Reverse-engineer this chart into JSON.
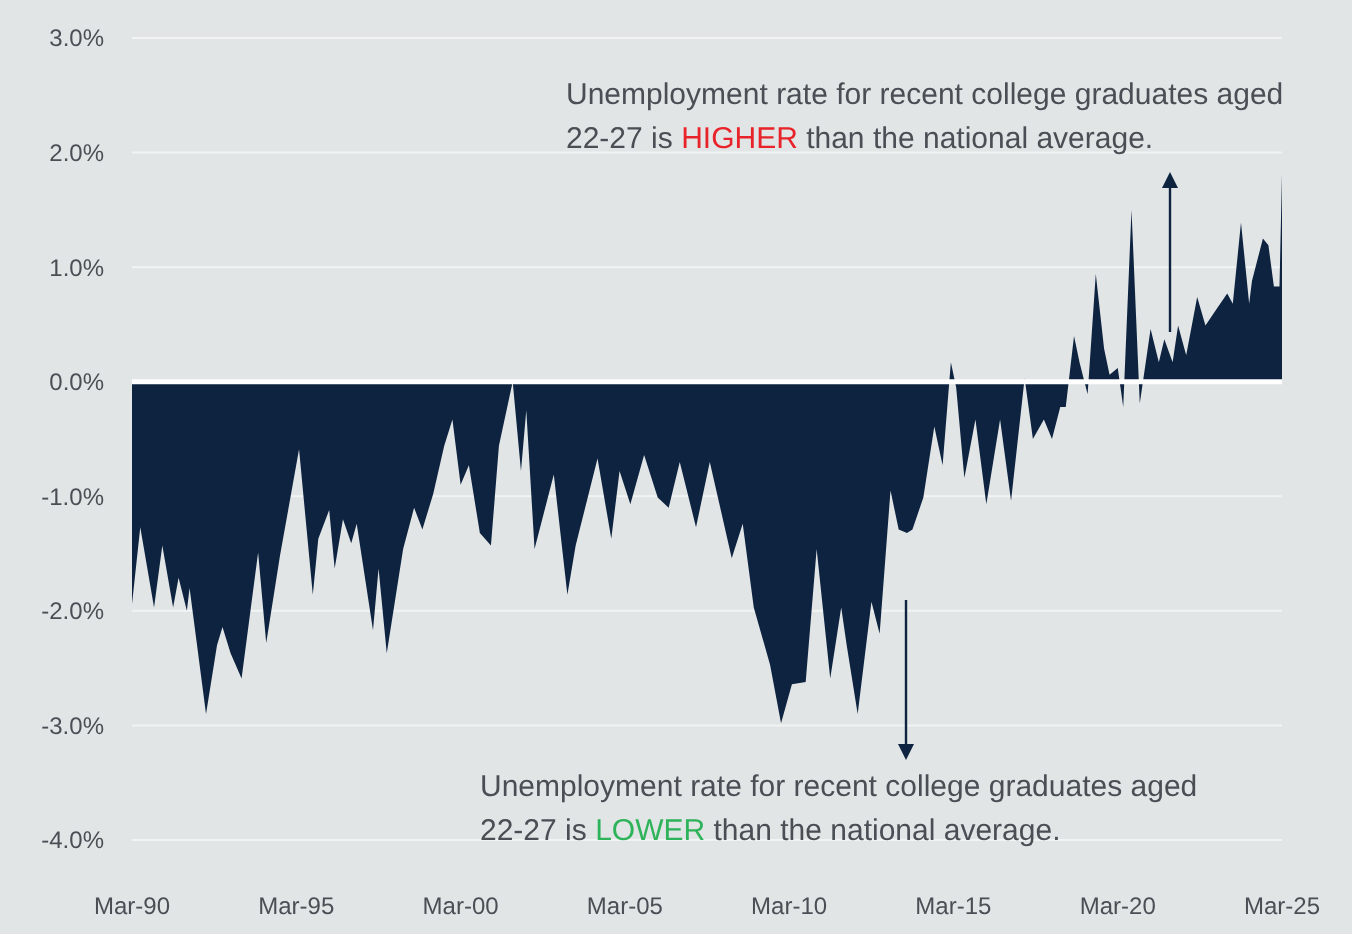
{
  "chart_data": {
    "type": "area",
    "x": [
      "1990-03",
      "1990-06",
      "1990-11",
      "1991-02",
      "1991-06",
      "1991-08",
      "1991-11",
      "1991-12",
      "1992-06",
      "1992-10",
      "1992-12",
      "1993-03",
      "1993-07",
      "1994-01",
      "1994-04",
      "1994-09",
      "1995-04",
      "1995-09",
      "1995-11",
      "1996-03",
      "1996-05",
      "1996-08",
      "1996-11",
      "1997-01",
      "1997-07",
      "1997-09",
      "1997-12",
      "1998-06",
      "1998-10",
      "1999-01",
      "1999-05",
      "1999-09",
      "1999-12",
      "2000-03",
      "2000-06",
      "2000-10",
      "2001-02",
      "2001-05",
      "2001-10",
      "2002-01",
      "2002-03",
      "2002-06",
      "2003-01",
      "2003-06",
      "2003-09",
      "2004-05",
      "2004-10",
      "2005-01",
      "2005-05",
      "2005-10",
      "2006-03",
      "2006-07",
      "2006-11",
      "2007-05",
      "2007-10",
      "2008-06",
      "2008-10",
      "2009-02",
      "2009-08",
      "2009-12",
      "2010-04",
      "2010-09",
      "2011-01",
      "2011-06",
      "2011-10",
      "2011-12",
      "2012-04",
      "2012-09",
      "2012-12",
      "2013-04",
      "2013-07",
      "2013-10",
      "2013-12",
      "2014-04",
      "2014-08",
      "2014-11",
      "2015-02",
      "2015-04",
      "2015-07",
      "2015-11",
      "2016-03",
      "2016-08",
      "2016-12",
      "2017-05",
      "2017-08",
      "2017-12",
      "2018-03",
      "2018-06",
      "2018-08",
      "2018-11",
      "2019-01",
      "2019-04",
      "2019-07",
      "2019-10",
      "2019-12",
      "2020-03",
      "2020-05",
      "2020-08",
      "2020-11",
      "2021-03",
      "2021-06",
      "2021-08",
      "2021-11",
      "2022-01",
      "2022-04",
      "2022-08",
      "2022-11",
      "2023-03",
      "2023-07",
      "2023-09",
      "2023-12",
      "2024-03",
      "2024-04",
      "2024-08",
      "2024-10",
      "2024-12",
      "2025-02",
      "2025-03"
    ],
    "series": [
      {
        "color": "#0d2340",
        "values": [
          -1.94,
          -1.27,
          -1.97,
          -1.43,
          -1.97,
          -1.71,
          -2.0,
          -1.8,
          -2.9,
          -2.3,
          -2.14,
          -2.37,
          -2.59,
          -1.49,
          -2.28,
          -1.52,
          -0.59,
          -1.86,
          -1.37,
          -1.12,
          -1.63,
          -1.2,
          -1.41,
          -1.24,
          -2.17,
          -1.63,
          -2.37,
          -1.46,
          -1.1,
          -1.29,
          -0.98,
          -0.56,
          -0.33,
          -0.9,
          -0.73,
          -1.32,
          -1.43,
          -0.56,
          0.0,
          -0.78,
          -0.25,
          -1.46,
          -0.81,
          -1.86,
          -1.43,
          -0.67,
          -1.37,
          -0.78,
          -1.07,
          -0.64,
          -1.01,
          -1.1,
          -0.7,
          -1.27,
          -0.7,
          -1.54,
          -1.24,
          -1.97,
          -2.47,
          -2.98,
          -2.64,
          -2.62,
          -1.46,
          -2.59,
          -1.97,
          -2.3,
          -2.9,
          -1.92,
          -2.2,
          -0.95,
          -1.29,
          -1.32,
          -1.29,
          -1.01,
          -0.39,
          -0.73,
          0.17,
          -0.05,
          -0.84,
          -0.33,
          -1.07,
          -0.33,
          -1.04,
          0.03,
          -0.5,
          -0.33,
          -0.5,
          -0.22,
          -0.22,
          0.4,
          0.17,
          -0.11,
          0.94,
          0.29,
          0.06,
          0.12,
          -0.22,
          1.5,
          -0.19,
          0.46,
          0.17,
          0.37,
          0.17,
          0.49,
          0.23,
          0.74,
          0.49,
          0.63,
          0.77,
          0.68,
          1.39,
          0.68,
          0.88,
          1.25,
          1.19,
          0.83,
          0.83,
          1.81
        ]
      }
    ],
    "xlim": [
      "1990-03",
      "2025-03"
    ],
    "xticks": [
      {
        "value": "1990-03",
        "label": "Mar-90"
      },
      {
        "value": "1995-03",
        "label": "Mar-95"
      },
      {
        "value": "2000-03",
        "label": "Mar-00"
      },
      {
        "value": "2005-03",
        "label": "Mar-05"
      },
      {
        "value": "2010-03",
        "label": "Mar-10"
      },
      {
        "value": "2015-03",
        "label": "Mar-15"
      },
      {
        "value": "2020-03",
        "label": "Mar-20"
      },
      {
        "value": "2025-03",
        "label": "Mar-25"
      }
    ],
    "ylim": [
      -4,
      3
    ],
    "yticks": [
      {
        "value": -4,
        "label": "-4.0%"
      },
      {
        "value": -3,
        "label": "-3.0%"
      },
      {
        "value": -2,
        "label": "-2.0%"
      },
      {
        "value": -1,
        "label": "-1.0%"
      },
      {
        "value": 0,
        "label": "0.0%"
      },
      {
        "value": 1,
        "label": "1.0%"
      },
      {
        "value": 2,
        "label": "2.0%"
      },
      {
        "value": 3,
        "label": "3.0%"
      }
    ],
    "grid": "y",
    "annotations": [
      "Unemployment rate for recent college graduates aged 22-27 is HIGHER than the national average.",
      "Unemployment rate for recent college graduates aged 22-27 is LOWER than the national average."
    ]
  }
}
